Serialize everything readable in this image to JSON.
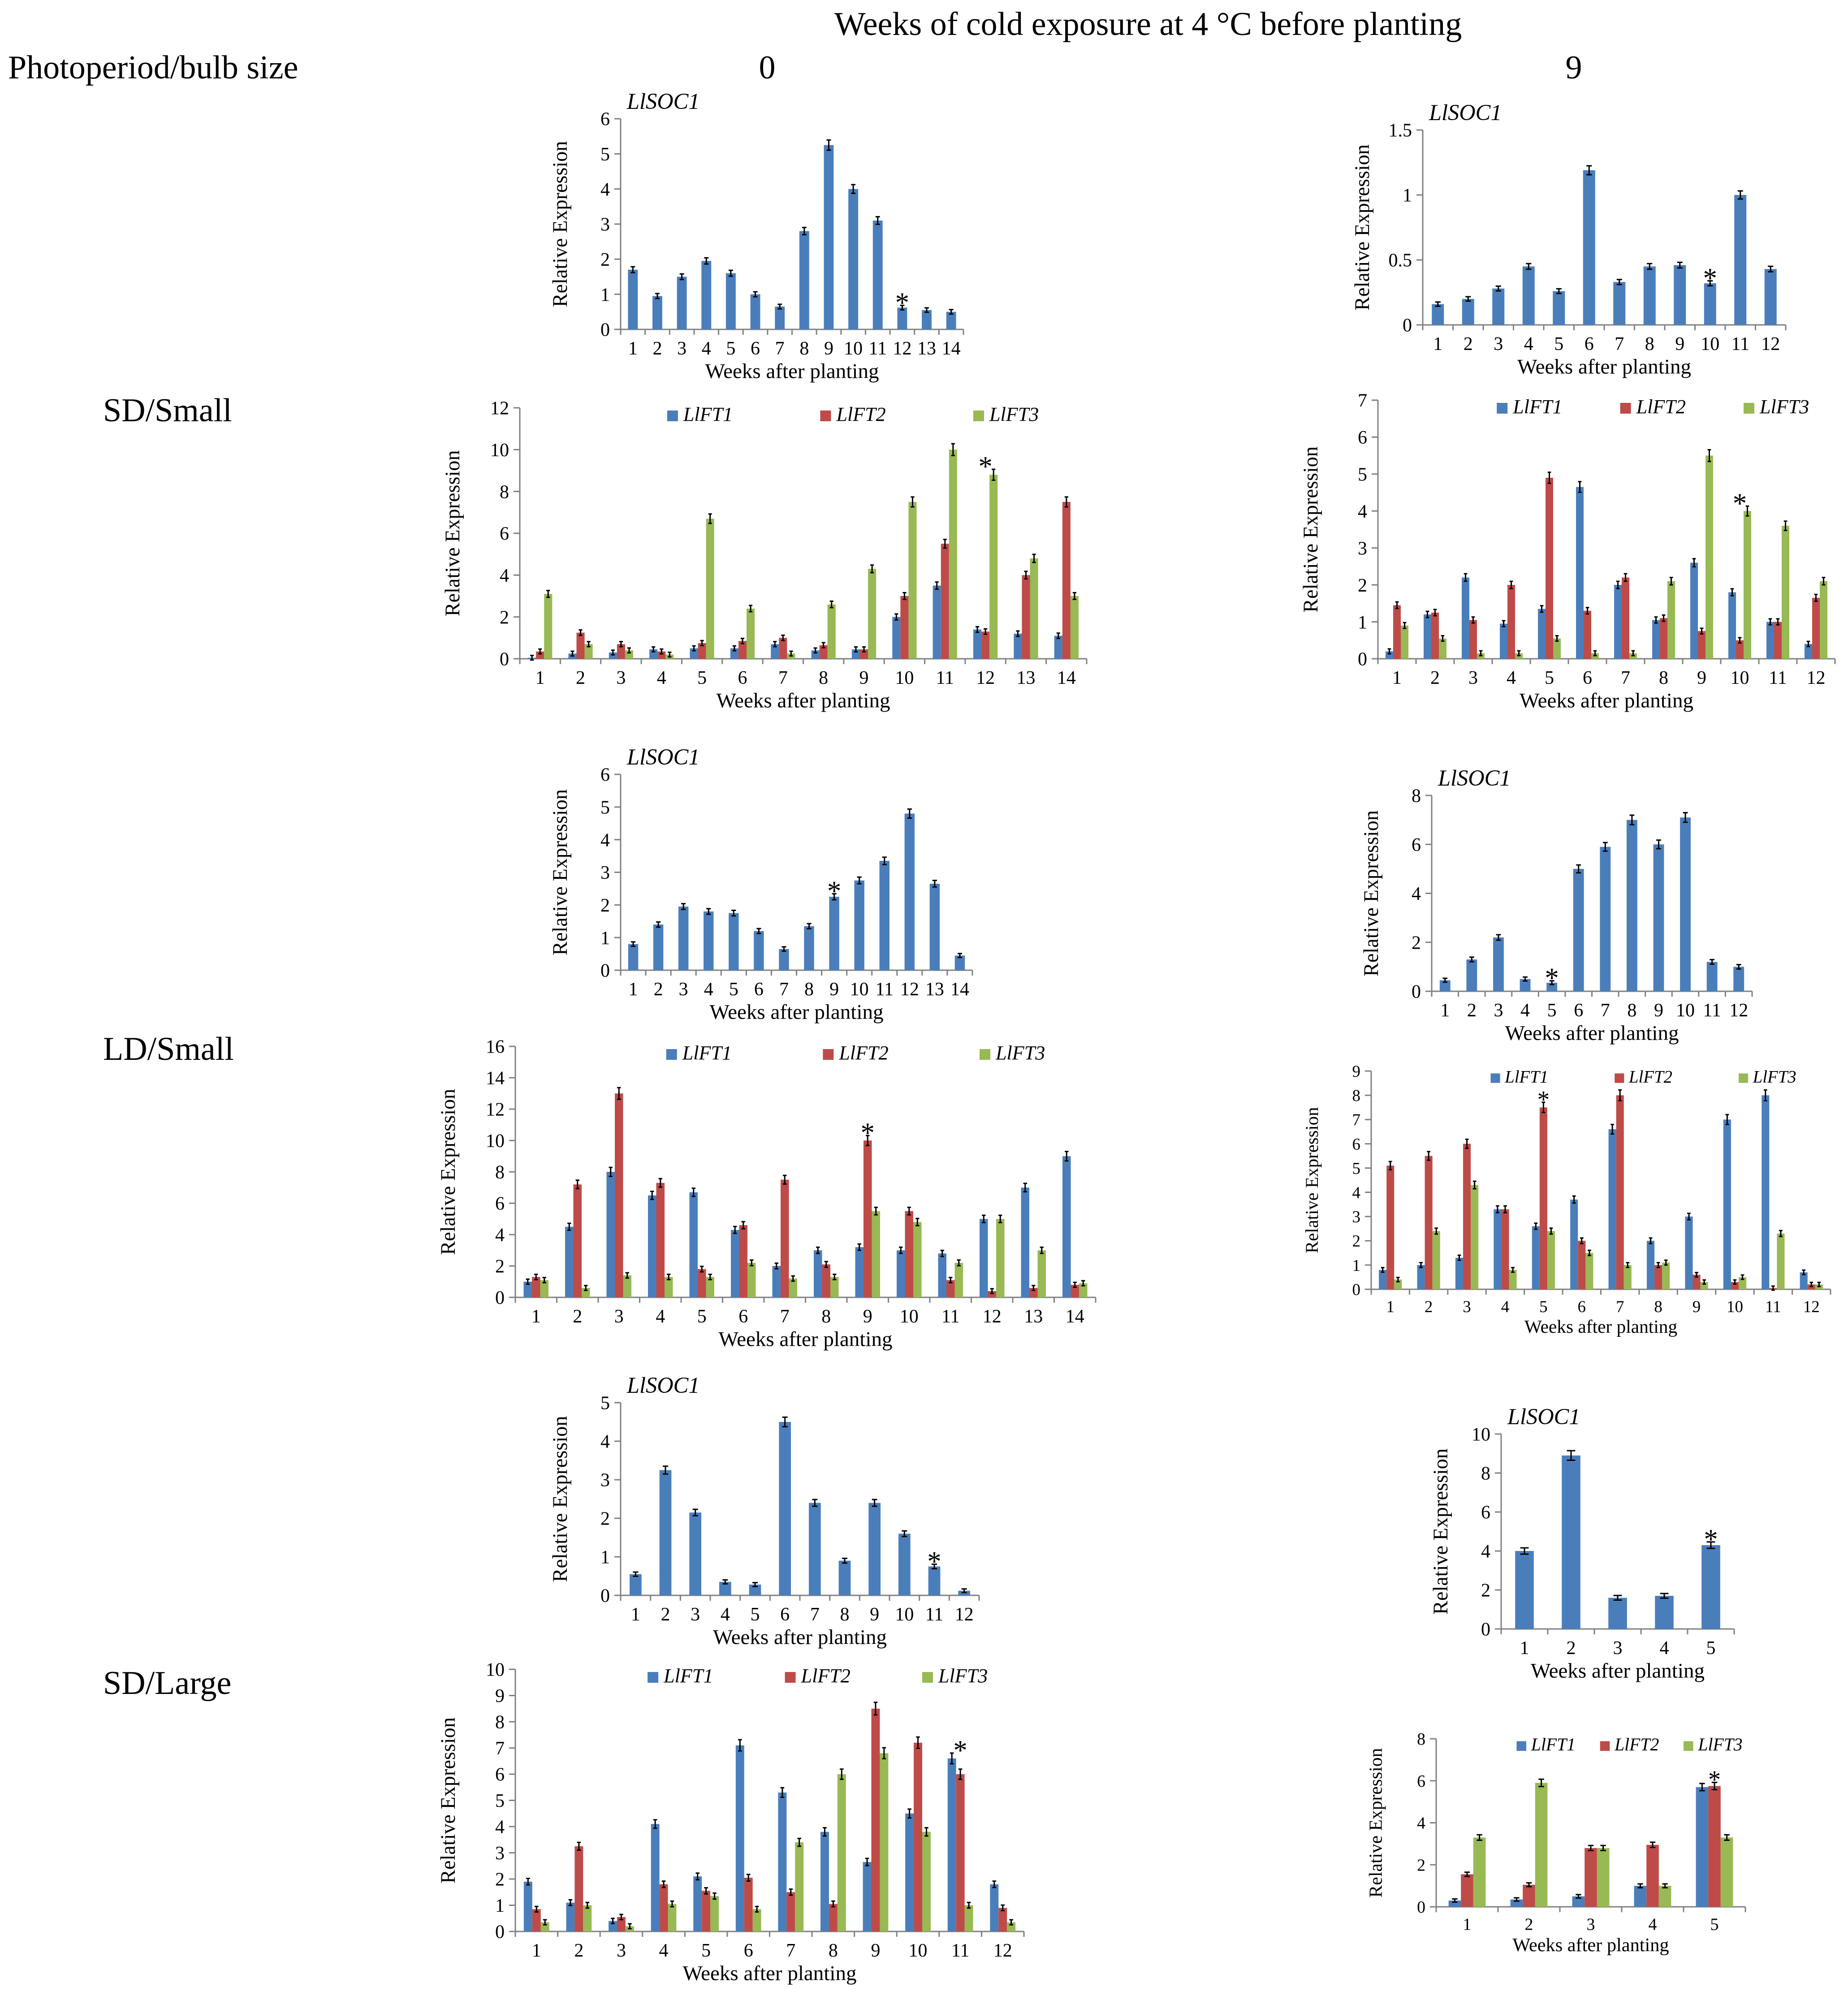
{
  "header": {
    "title": "Weeks of cold exposure at 4 °C before planting",
    "row_label_header": "Photoperiod/bulb size",
    "col0": "0",
    "col9": "9"
  },
  "rows": [
    "SD/Small",
    "LD/Small",
    "SD/Large"
  ],
  "colors": {
    "LlFT1": "#4a7ebb",
    "LlFT2": "#be4b48",
    "LlFT3": "#98b954"
  },
  "chart_data": [
    {
      "id": "sd-small-0-soc1",
      "type": "bar",
      "gene": "LlSOC1",
      "categories": [
        "1",
        "2",
        "3",
        "4",
        "5",
        "6",
        "7",
        "8",
        "9",
        "10",
        "11",
        "12",
        "13",
        "14"
      ],
      "series": [
        {
          "name": "LlSOC1",
          "values": [
            1.7,
            0.95,
            1.5,
            1.95,
            1.6,
            1.0,
            0.65,
            2.8,
            5.25,
            4.0,
            3.1,
            0.62,
            0.55,
            0.5
          ]
        }
      ],
      "ylim": [
        0,
        6
      ],
      "yticks": [
        "0",
        "1",
        "2",
        "3",
        "4",
        "5",
        "6"
      ],
      "xlabel": "Weeks after planting",
      "ylabel": "Relative Expression",
      "star_at": "12",
      "star": "*"
    },
    {
      "id": "sd-small-0-ft",
      "type": "bar",
      "categories": [
        "1",
        "2",
        "3",
        "4",
        "5",
        "6",
        "7",
        "8",
        "9",
        "10",
        "11",
        "12",
        "13",
        "14"
      ],
      "series": [
        {
          "name": "LlFT1",
          "values": [
            0.05,
            0.25,
            0.3,
            0.45,
            0.5,
            0.5,
            0.7,
            0.4,
            0.45,
            2.0,
            3.5,
            1.4,
            1.2,
            1.1
          ]
        },
        {
          "name": "LlFT2",
          "values": [
            0.35,
            1.25,
            0.7,
            0.35,
            0.75,
            0.85,
            1.0,
            0.65,
            0.45,
            3.0,
            5.5,
            1.3,
            4.0,
            7.5
          ]
        },
        {
          "name": "LlFT3",
          "values": [
            3.1,
            0.7,
            0.4,
            0.2,
            6.7,
            2.4,
            0.25,
            2.6,
            4.3,
            7.5,
            10.0,
            8.8,
            4.8,
            3.0
          ]
        }
      ],
      "ylim": [
        0,
        12
      ],
      "yticks": [
        "0",
        "2",
        "4",
        "6",
        "8",
        "10",
        "12"
      ],
      "xlabel": "Weeks after planting",
      "ylabel": "Relative Expression",
      "star_at": "12",
      "star": "*"
    },
    {
      "id": "sd-small-9-soc1",
      "type": "bar",
      "gene": "LlSOC1",
      "categories": [
        "1",
        "2",
        "3",
        "4",
        "5",
        "6",
        "7",
        "8",
        "9",
        "10",
        "11",
        "12"
      ],
      "series": [
        {
          "name": "LlSOC1",
          "values": [
            0.16,
            0.2,
            0.28,
            0.45,
            0.26,
            1.19,
            0.33,
            0.45,
            0.46,
            0.32,
            1.0,
            0.43
          ]
        }
      ],
      "ylim": [
        0,
        1.5
      ],
      "yticks": [
        "0",
        "0.5",
        "1",
        "1.5"
      ],
      "xlabel": "Weeks after planting",
      "ylabel": "Relative Expression",
      "star_at": "10",
      "star": "*"
    },
    {
      "id": "sd-small-9-ft",
      "type": "bar",
      "categories": [
        "1",
        "2",
        "3",
        "4",
        "5",
        "6",
        "7",
        "8",
        "9",
        "10",
        "11",
        "12"
      ],
      "series": [
        {
          "name": "LlFT1",
          "values": [
            0.2,
            1.2,
            2.2,
            0.95,
            1.35,
            4.65,
            2.0,
            1.05,
            2.6,
            1.8,
            1.0,
            0.4
          ]
        },
        {
          "name": "LlFT2",
          "values": [
            1.45,
            1.25,
            1.05,
            2.0,
            4.9,
            1.3,
            2.2,
            1.1,
            0.75,
            0.5,
            1.0,
            1.65
          ]
        },
        {
          "name": "LlFT3",
          "values": [
            0.9,
            0.55,
            0.15,
            0.15,
            0.55,
            0.15,
            0.15,
            2.1,
            5.5,
            4.0,
            3.6,
            2.1
          ]
        }
      ],
      "ylim": [
        0,
        7
      ],
      "yticks": [
        "0",
        "1",
        "2",
        "3",
        "4",
        "5",
        "6",
        "7"
      ],
      "xlabel": "Weeks after planting",
      "ylabel": "Relative Expression",
      "star_at": "10",
      "star": "*"
    },
    {
      "id": "ld-small-0-soc1",
      "type": "bar",
      "gene": "LlSOC1",
      "categories": [
        "1",
        "2",
        "3",
        "4",
        "5",
        "6",
        "7",
        "8",
        "9",
        "10",
        "11",
        "12",
        "13",
        "14"
      ],
      "series": [
        {
          "name": "LlSOC1",
          "values": [
            0.8,
            1.4,
            1.95,
            1.8,
            1.75,
            1.2,
            0.65,
            1.35,
            2.25,
            2.75,
            3.35,
            4.8,
            2.65,
            0.45
          ]
        }
      ],
      "ylim": [
        0,
        6
      ],
      "yticks": [
        "0",
        "1",
        "2",
        "3",
        "4",
        "5",
        "6"
      ],
      "xlabel": "Weeks after planting",
      "ylabel": "Relative Expression",
      "star_at": "9",
      "star": "*"
    },
    {
      "id": "ld-small-0-ft",
      "type": "bar",
      "categories": [
        "1",
        "2",
        "3",
        "4",
        "5",
        "6",
        "7",
        "8",
        "9",
        "10",
        "11",
        "12",
        "13",
        "14"
      ],
      "series": [
        {
          "name": "LlFT1",
          "values": [
            1.0,
            4.5,
            8.0,
            6.5,
            6.7,
            4.3,
            2.0,
            3.0,
            3.2,
            3.0,
            2.8,
            5.0,
            7.0,
            9.0
          ]
        },
        {
          "name": "LlFT2",
          "values": [
            1.3,
            7.2,
            13.0,
            7.3,
            1.8,
            4.6,
            7.5,
            2.1,
            10.0,
            5.5,
            1.1,
            0.4,
            0.6,
            0.8
          ]
        },
        {
          "name": "LlFT3",
          "values": [
            1.1,
            0.6,
            1.4,
            1.3,
            1.3,
            2.2,
            1.2,
            1.3,
            5.5,
            4.8,
            2.2,
            5.0,
            3.0,
            0.9
          ]
        }
      ],
      "ylim": [
        0,
        16
      ],
      "yticks": [
        "0",
        "2",
        "4",
        "6",
        "8",
        "10",
        "12",
        "14",
        "16"
      ],
      "xlabel": "Weeks after planting",
      "ylabel": "Relative Expression",
      "star_at": "9",
      "star": "*"
    },
    {
      "id": "ld-small-9-soc1",
      "type": "bar",
      "gene": "LlSOC1",
      "categories": [
        "1",
        "2",
        "3",
        "4",
        "5",
        "6",
        "7",
        "8",
        "9",
        "10",
        "11",
        "12"
      ],
      "series": [
        {
          "name": "LlSOC1",
          "values": [
            0.45,
            1.3,
            2.2,
            0.5,
            0.35,
            5.0,
            5.9,
            7.0,
            6.0,
            7.1,
            1.2,
            1.0
          ]
        }
      ],
      "ylim": [
        0,
        8
      ],
      "yticks": [
        "0",
        "2",
        "4",
        "6",
        "8"
      ],
      "xlabel": "Weeks after planting",
      "ylabel": "Relative Expression",
      "star_at": "5",
      "star": "*"
    },
    {
      "id": "ld-small-9-ft",
      "type": "bar",
      "categories": [
        "1",
        "2",
        "3",
        "4",
        "5",
        "6",
        "7",
        "8",
        "9",
        "10",
        "11",
        "12"
      ],
      "series": [
        {
          "name": "LlFT1",
          "values": [
            0.8,
            1.0,
            1.3,
            3.3,
            2.6,
            3.7,
            6.6,
            2.0,
            3.0,
            7.0,
            8.0,
            0.7
          ]
        },
        {
          "name": "LlFT2",
          "values": [
            5.1,
            5.5,
            6.0,
            3.3,
            7.5,
            2.0,
            8.0,
            1.0,
            0.6,
            0.3,
            0.05,
            0.2
          ]
        },
        {
          "name": "LlFT3",
          "values": [
            0.4,
            2.4,
            4.3,
            0.8,
            2.4,
            1.5,
            1.0,
            1.1,
            0.3,
            0.5,
            2.3,
            0.2
          ]
        }
      ],
      "ylim": [
        0,
        9
      ],
      "yticks": [
        "0",
        "1",
        "2",
        "3",
        "4",
        "5",
        "6",
        "7",
        "8",
        "9"
      ],
      "xlabel": "Weeks after planting",
      "ylabel": "Relative Expression",
      "star_at": "5",
      "star": "*"
    },
    {
      "id": "sd-large-0-soc1",
      "type": "bar",
      "gene": "LlSOC1",
      "categories": [
        "1",
        "2",
        "3",
        "4",
        "5",
        "6",
        "7",
        "8",
        "9",
        "10",
        "11",
        "12"
      ],
      "series": [
        {
          "name": "LlSOC1",
          "values": [
            0.55,
            3.25,
            2.15,
            0.35,
            0.28,
            4.5,
            2.4,
            0.9,
            2.4,
            1.6,
            0.75,
            0.12
          ]
        }
      ],
      "ylim": [
        0,
        5
      ],
      "yticks": [
        "0",
        "1",
        "2",
        "3",
        "4",
        "5"
      ],
      "xlabel": "Weeks after planting",
      "ylabel": "Relative Expression",
      "star_at": "11",
      "star": "*"
    },
    {
      "id": "sd-large-0-ft",
      "type": "bar",
      "categories": [
        "1",
        "2",
        "3",
        "4",
        "5",
        "6",
        "7",
        "8",
        "9",
        "10",
        "11",
        "12"
      ],
      "series": [
        {
          "name": "LlFT1",
          "values": [
            1.9,
            1.1,
            0.4,
            4.1,
            2.1,
            7.1,
            5.3,
            3.8,
            2.65,
            4.5,
            6.6,
            1.8
          ]
        },
        {
          "name": "LlFT2",
          "values": [
            0.85,
            3.25,
            0.55,
            1.8,
            1.55,
            2.05,
            1.5,
            1.05,
            8.5,
            7.2,
            6.0,
            0.9
          ]
        },
        {
          "name": "LlFT3",
          "values": [
            0.35,
            1.0,
            0.2,
            1.05,
            1.35,
            0.85,
            3.4,
            6.0,
            6.8,
            3.8,
            1.0,
            0.35
          ]
        }
      ],
      "ylim": [
        0,
        10
      ],
      "yticks": [
        "0",
        "1",
        "2",
        "3",
        "4",
        "5",
        "6",
        "7",
        "8",
        "9",
        "10"
      ],
      "xlabel": "Weeks after planting",
      "ylabel": "Relative Expression",
      "star_at": "11",
      "star": "*"
    },
    {
      "id": "sd-large-9-soc1",
      "type": "bar",
      "gene": "LlSOC1",
      "categories": [
        "1",
        "2",
        "3",
        "4",
        "5"
      ],
      "series": [
        {
          "name": "LlSOC1",
          "values": [
            4.0,
            8.9,
            1.6,
            1.7,
            4.3
          ]
        }
      ],
      "ylim": [
        0,
        10
      ],
      "yticks": [
        "0",
        "2",
        "4",
        "6",
        "8",
        "10"
      ],
      "xlabel": "Weeks after planting",
      "ylabel": "Relative Expression",
      "star_at": "5",
      "star": "*"
    },
    {
      "id": "sd-large-9-ft",
      "type": "bar",
      "categories": [
        "1",
        "2",
        "3",
        "4",
        "5"
      ],
      "series": [
        {
          "name": "LlFT1",
          "values": [
            0.3,
            0.35,
            0.5,
            1.0,
            5.7
          ]
        },
        {
          "name": "LlFT2",
          "values": [
            1.55,
            1.05,
            2.8,
            2.95,
            5.75
          ]
        },
        {
          "name": "LlFT3",
          "values": [
            3.3,
            5.9,
            2.8,
            1.0,
            3.3
          ]
        }
      ],
      "ylim": [
        0,
        8
      ],
      "yticks": [
        "0",
        "2",
        "4",
        "6",
        "8"
      ],
      "xlabel": "Weeks after planting",
      "ylabel": "Relative Expression",
      "star_at": "5",
      "star": "*"
    }
  ]
}
